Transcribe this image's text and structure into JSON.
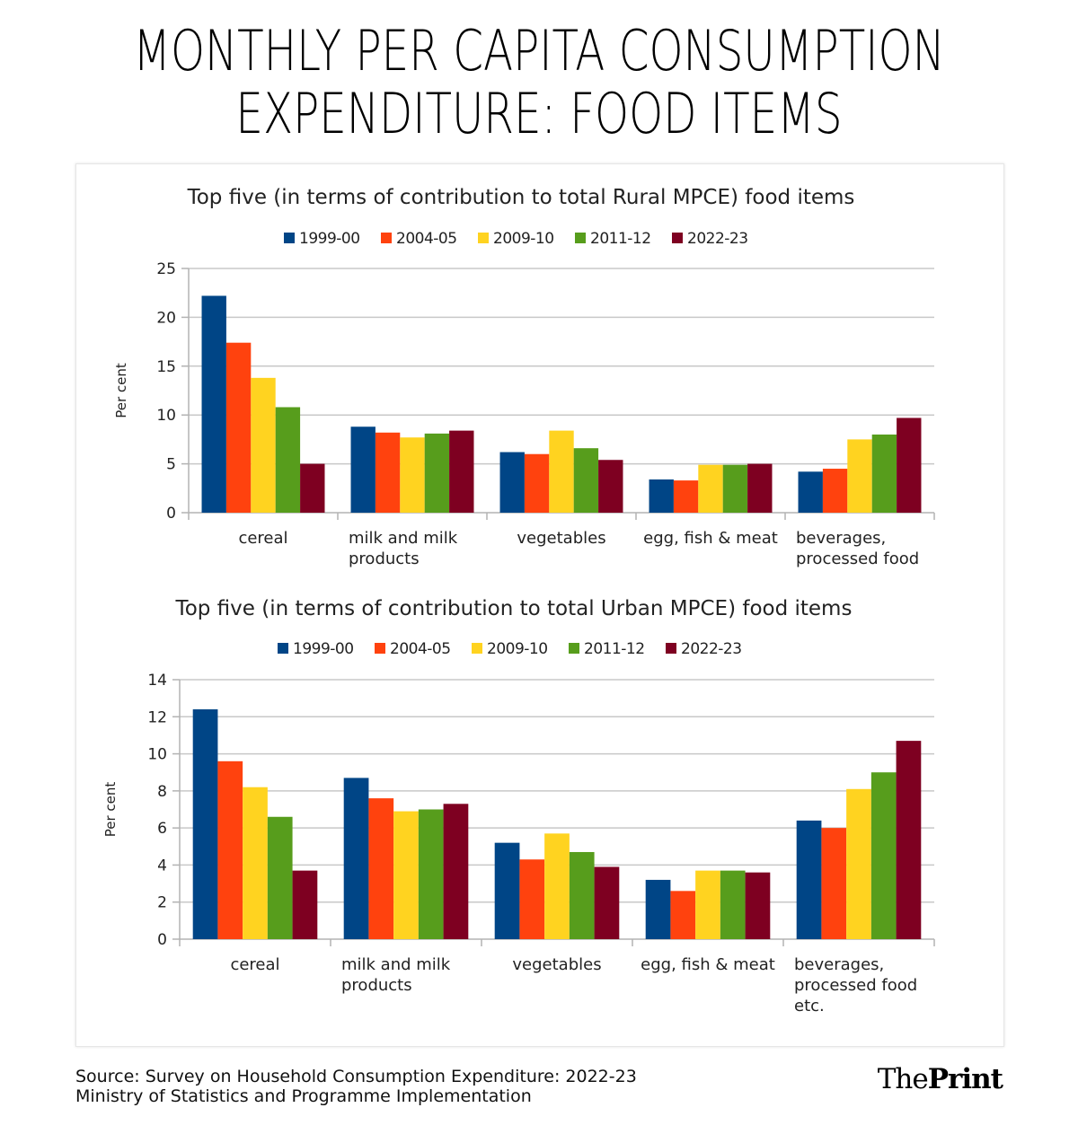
{
  "headline": {
    "line1": "MONTHLY PER CAPITA CONSUMPTION",
    "line2": "EXPENDITURE: FOOD ITEMS"
  },
  "legend_colors": {
    "1999-00": "#004586",
    "2004-05": "#ff420e",
    "2009-10": "#ffd320",
    "2011-12": "#579d1c",
    "2022-23": "#7e0021"
  },
  "chart_data": [
    {
      "type": "bar",
      "title": "Top five (in terms of contribution to total Rural MPCE) food items",
      "ylabel": "Per cent",
      "xlabel": "",
      "ylim": [
        0,
        25
      ],
      "yticks": [
        0,
        5,
        10,
        15,
        20,
        25
      ],
      "categories": [
        [
          "cereal"
        ],
        [
          "milk and milk",
          "products"
        ],
        [
          "vegetables"
        ],
        [
          "egg, fish & meat"
        ],
        [
          "beverages,",
          "processed food"
        ]
      ],
      "series": [
        {
          "name": "1999-00",
          "values": [
            22.2,
            8.8,
            6.2,
            3.4,
            4.2
          ]
        },
        {
          "name": "2004-05",
          "values": [
            17.4,
            8.2,
            6.0,
            3.3,
            4.5
          ]
        },
        {
          "name": "2009-10",
          "values": [
            13.8,
            7.7,
            8.4,
            4.9,
            7.5
          ]
        },
        {
          "name": "2011-12",
          "values": [
            10.8,
            8.1,
            6.6,
            4.9,
            8.0
          ]
        },
        {
          "name": "2022-23",
          "values": [
            5.0,
            8.4,
            5.4,
            5.0,
            9.7
          ]
        }
      ],
      "grid": true,
      "legend": "top-center"
    },
    {
      "type": "bar",
      "title": "Top five (in terms of contribution to total Urban MPCE) food items",
      "ylabel": "Per cent",
      "xlabel": "",
      "ylim": [
        0,
        14
      ],
      "yticks": [
        0,
        2,
        4,
        6,
        8,
        10,
        12,
        14
      ],
      "categories": [
        [
          "cereal"
        ],
        [
          "milk and milk",
          "products"
        ],
        [
          "vegetables"
        ],
        [
          "egg, fish & meat"
        ],
        [
          "beverages,",
          "processed  food",
          "etc."
        ]
      ],
      "series": [
        {
          "name": "1999-00",
          "values": [
            12.4,
            8.7,
            5.2,
            3.2,
            6.4
          ]
        },
        {
          "name": "2004-05",
          "values": [
            9.6,
            7.6,
            4.3,
            2.6,
            6.0
          ]
        },
        {
          "name": "2009-10",
          "values": [
            8.2,
            6.9,
            5.7,
            3.7,
            8.1
          ]
        },
        {
          "name": "2011-12",
          "values": [
            6.6,
            7.0,
            4.7,
            3.7,
            9.0
          ]
        },
        {
          "name": "2022-23",
          "values": [
            3.7,
            7.3,
            3.9,
            3.6,
            10.7
          ]
        }
      ],
      "grid": true,
      "legend": "top-center"
    }
  ],
  "source": {
    "line1": "Source: Survey on Household Consumption Expenditure: 2022-23",
    "line2": "Ministry of Statistics and Programme Implementation"
  },
  "logo": {
    "part1": "The",
    "part2": "Print"
  }
}
